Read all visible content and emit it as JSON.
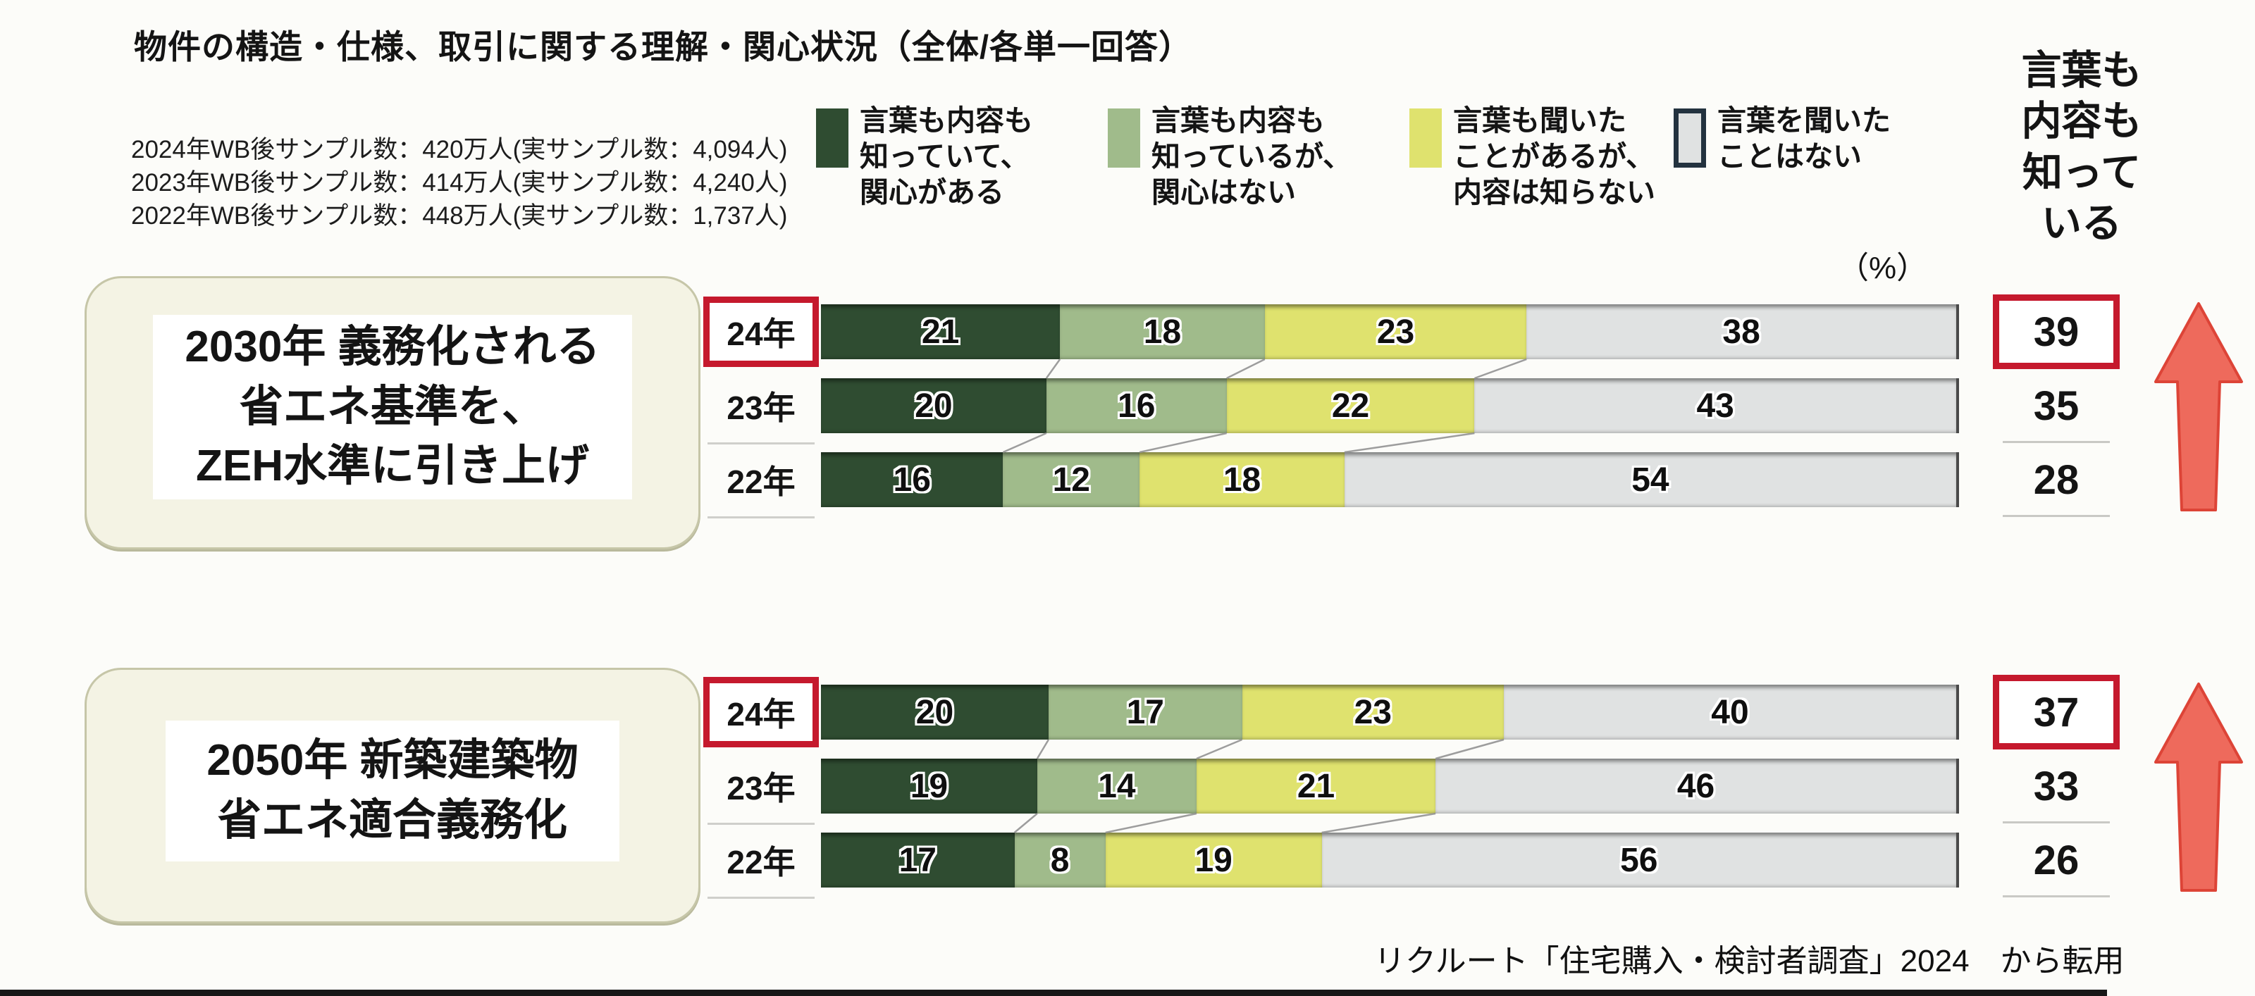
{
  "title": "物件の構造・仕様、取引に関する理解・関心状況（全体/各単一回答）",
  "notes": [
    "2024年WB後サンプル数：420万人(実サンプル数：4,094人)",
    "2023年WB後サンプル数：414万人(実サンプル数：4,240人)",
    "2022年WB後サンプル数：448万人(実サンプル数：1,737人)"
  ],
  "legend": [
    {
      "label": "言葉も内容も\n知っていて、\n関心がある",
      "color": "#2f4c31"
    },
    {
      "label": "言葉も内容も\n知っているが、\n関心はない",
      "color": "#a0bb8b"
    },
    {
      "label": "言葉も聞いた\nことがあるが、\n内容は知らない",
      "color": "#dfe26e"
    },
    {
      "label": "言葉を聞いた\nことはない",
      "color": "#e0e2e2",
      "border": "#23323f"
    }
  ],
  "percent_label": "（%）",
  "right_axis_header": "言葉も\n内容も\n知って\nいる",
  "cards": [
    {
      "label": "2030年 義務化される\n省エネ基準を、\nZEH水準に引き上げ"
    },
    {
      "label": "2050年 新築建築物\n省エネ適合義務化"
    }
  ],
  "source": "リクルート「住宅購入・検討者調査」2024　から転用",
  "colors": {
    "segments": [
      "#2f4c31",
      "#a0bb8b",
      "#dfe26e",
      "#e0e2e2"
    ],
    "gray_swatch_border": "#23323f",
    "highlight_red": "#c5192d",
    "arrow_fill": "#ee6a5c",
    "arrow_edge": "#dd4437",
    "card_bg": "#f4f3e4"
  },
  "chart_data": [
    {
      "type": "bar",
      "orientation": "horizontal-stacked",
      "title": "2030年 義務化される省エネ基準を、ZEH水準に引き上げ",
      "unit": "%",
      "categories": [
        "24年",
        "23年",
        "22年"
      ],
      "series": [
        {
          "name": "言葉も内容も知っていて、関心がある",
          "values": [
            21,
            20,
            16
          ]
        },
        {
          "name": "言葉も内容も知っているが、関心はない",
          "values": [
            18,
            16,
            12
          ]
        },
        {
          "name": "言葉も聞いたことがあるが、内容は知らない",
          "values": [
            23,
            22,
            18
          ]
        },
        {
          "name": "言葉を聞いたことはない",
          "values": [
            38,
            43,
            54
          ]
        }
      ],
      "totals_label": "言葉も内容も知っている",
      "totals": [
        39,
        35,
        28
      ],
      "highlighted_category": "24年",
      "trend_arrow": "up"
    },
    {
      "type": "bar",
      "orientation": "horizontal-stacked",
      "title": "2050年 新築建築物 省エネ適合義務化",
      "unit": "%",
      "categories": [
        "24年",
        "23年",
        "22年"
      ],
      "series": [
        {
          "name": "言葉も内容も知っていて、関心がある",
          "values": [
            20,
            19,
            17
          ]
        },
        {
          "name": "言葉も内容も知っているが、関心はない",
          "values": [
            17,
            14,
            8
          ]
        },
        {
          "name": "言葉も聞いたことがあるが、内容は知らない",
          "values": [
            23,
            21,
            19
          ]
        },
        {
          "name": "言葉を聞いたことはない",
          "values": [
            40,
            46,
            56
          ]
        }
      ],
      "totals_label": "言葉も内容も知っている",
      "totals": [
        37,
        33,
        26
      ],
      "highlighted_category": "24年",
      "trend_arrow": "up"
    }
  ]
}
